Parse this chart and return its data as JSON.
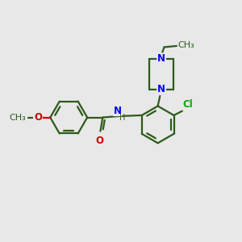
{
  "bg_color": "#e8e8e8",
  "bond_color": "#2d5a1b",
  "nitrogen_color": "#0000ff",
  "oxygen_color": "#cc0000",
  "chlorine_color": "#00aa00",
  "line_width": 1.6,
  "font_size": 8.5,
  "figsize": [
    3.0,
    3.0
  ],
  "dpi": 100,
  "xlim": [
    0,
    10
  ],
  "ylim": [
    0,
    10
  ]
}
